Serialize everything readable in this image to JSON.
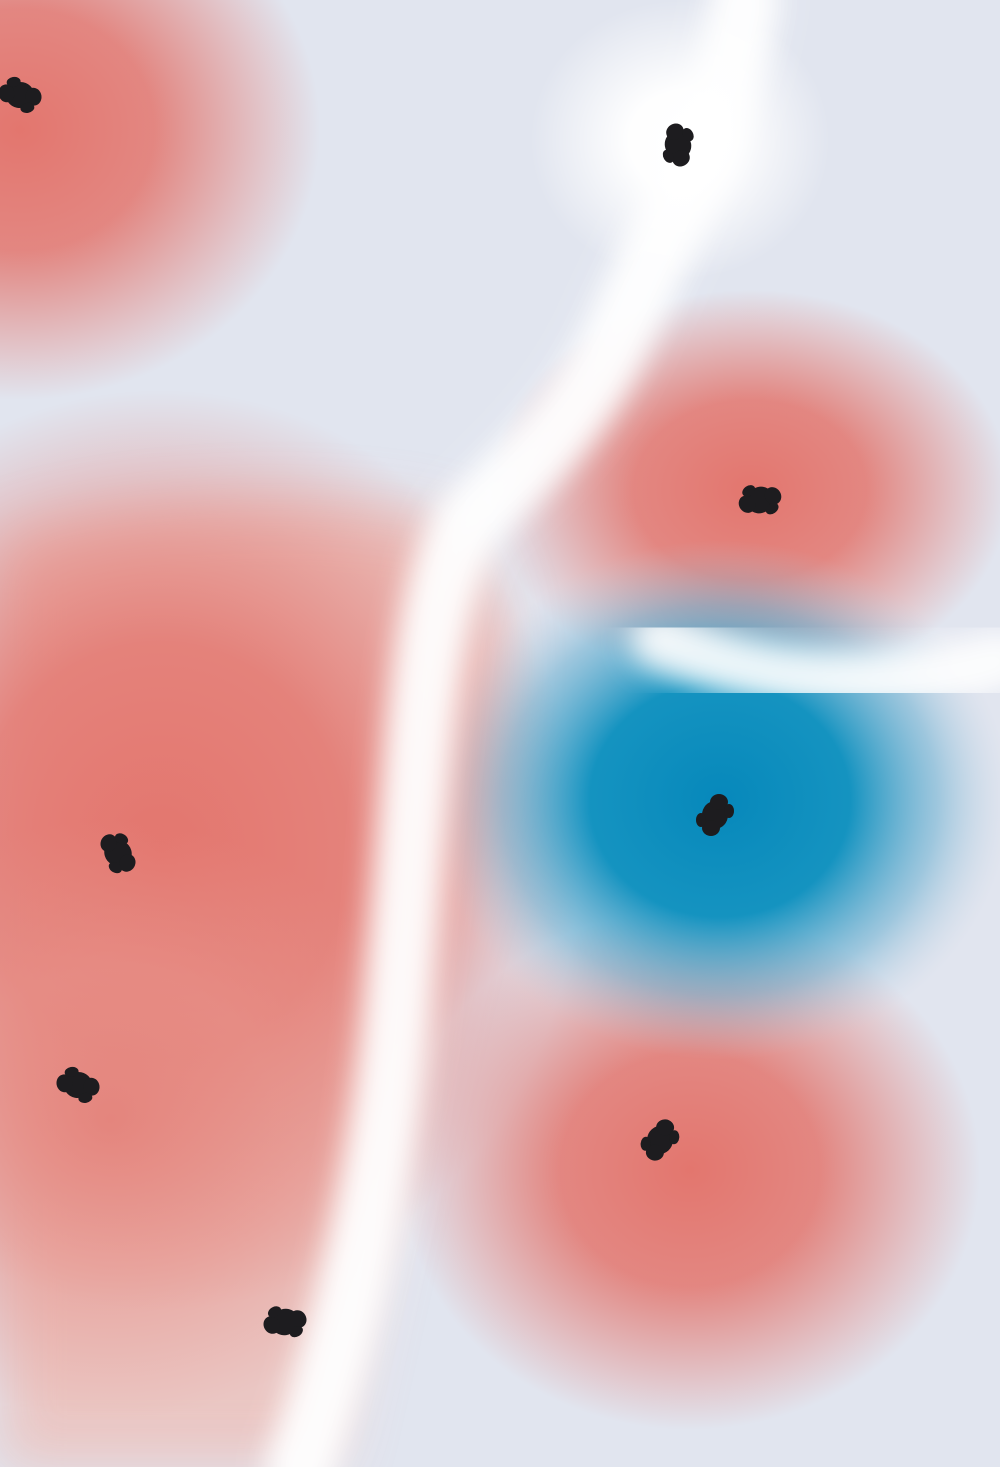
{
  "palette": {
    "background": "#e1e5ef",
    "warm": "#e3766e",
    "cool": "#0a8fbe",
    "neutral": "#ffffff",
    "marker": "#1d1c1f"
  },
  "markers": [
    {
      "name": "marker-top-left",
      "kind": "warm"
    },
    {
      "name": "marker-top-center",
      "kind": "neutral"
    },
    {
      "name": "marker-upper-right",
      "kind": "warm"
    },
    {
      "name": "marker-middle-right",
      "kind": "cool"
    },
    {
      "name": "marker-left-middle",
      "kind": "warm"
    },
    {
      "name": "marker-left-lower",
      "kind": "warm"
    },
    {
      "name": "marker-lower-right",
      "kind": "warm"
    },
    {
      "name": "marker-bottom-left",
      "kind": "warm"
    }
  ]
}
